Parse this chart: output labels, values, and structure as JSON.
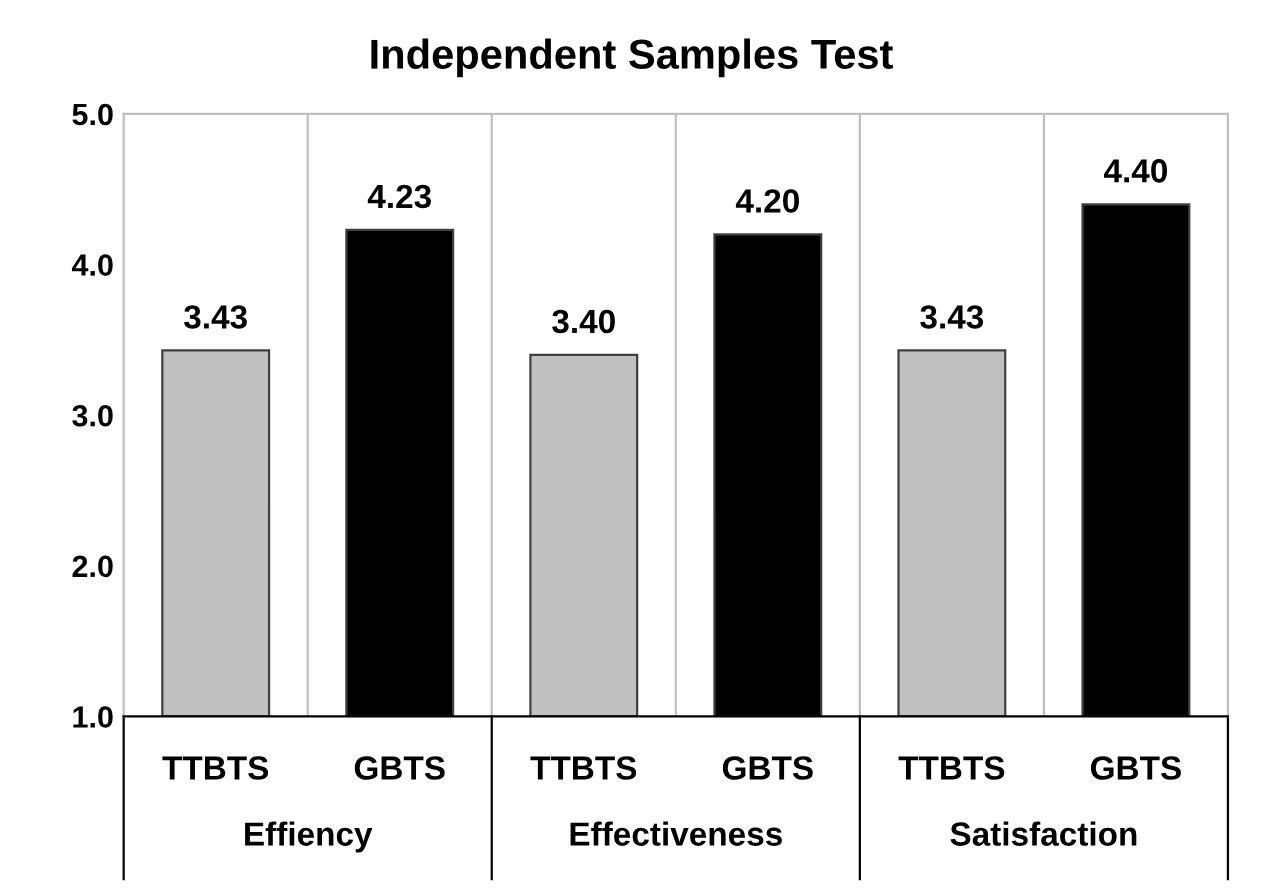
{
  "chart_data": {
    "type": "bar",
    "title": "Independent Samples Test",
    "categories": [
      "TTBTS",
      "GBTS",
      "TTBTS",
      "GBTS",
      "TTBTS",
      "GBTS"
    ],
    "values": [
      3.43,
      4.23,
      3.4,
      4.2,
      3.43,
      4.4
    ],
    "colors": [
      "#c0c0c0",
      "#000000",
      "#c0c0c0",
      "#000000",
      "#c0c0c0",
      "#000000"
    ],
    "value_labels": [
      "3.43",
      "4.23",
      "3.40",
      "4.20",
      "3.43",
      "4.40"
    ],
    "ylim": [
      1.0,
      5.0
    ],
    "yticks": [
      {
        "value": 1,
        "label": "1.0"
      },
      {
        "value": 2,
        "label": "2.0"
      },
      {
        "value": 3,
        "label": "3.0"
      },
      {
        "value": 4,
        "label": "4.0"
      },
      {
        "value": 5,
        "label": "5.0"
      }
    ],
    "annotations": [
      "Effiency",
      "Effectiveness",
      "Satisfaction"
    ],
    "grid": false
  }
}
